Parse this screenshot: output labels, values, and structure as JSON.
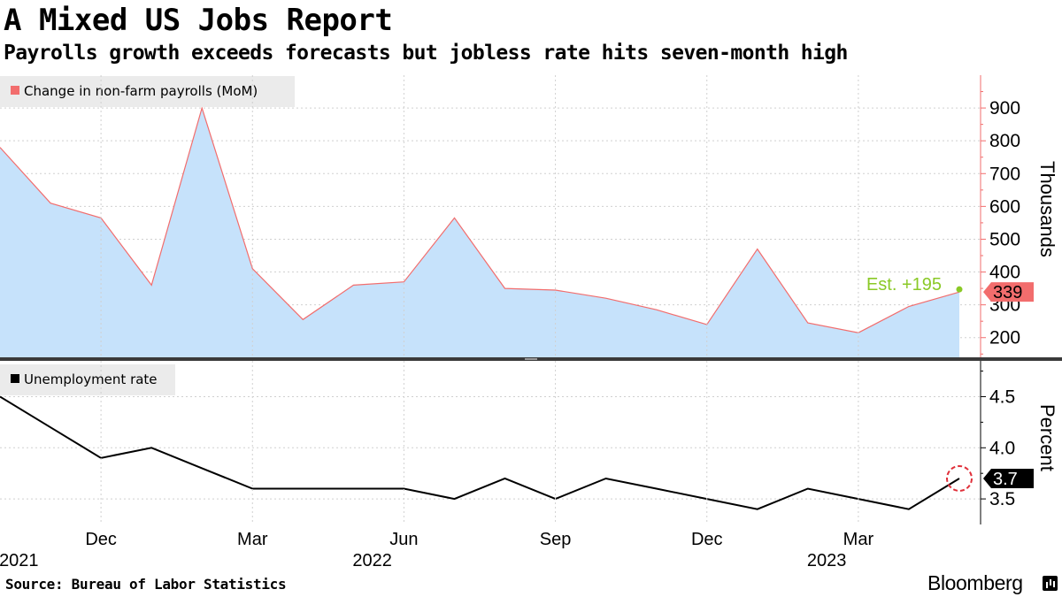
{
  "title": "A Mixed US Jobs Report",
  "subtitle": "Payrolls growth exceeds forecasts but jobless rate hits seven-month high",
  "source": "Source: Bureau of Labor Statistics",
  "brand": "Bloomberg",
  "chart_data": [
    {
      "type": "area",
      "legend": "Change in non-farm payrolls (MoM)",
      "ylabel": "Thousands",
      "ylim": [
        140,
        1000
      ],
      "yticks": [
        200,
        300,
        400,
        500,
        600,
        700,
        800,
        900
      ],
      "x": [
        "2021-10",
        "2021-11",
        "2021-12",
        "2022-01",
        "2022-02",
        "2022-03",
        "2022-04",
        "2022-05",
        "2022-06",
        "2022-07",
        "2022-08",
        "2022-09",
        "2022-10",
        "2022-11",
        "2022-12",
        "2023-01",
        "2023-02",
        "2023-03",
        "2023-04",
        "2023-05"
      ],
      "values": [
        780,
        610,
        565,
        360,
        900,
        410,
        255,
        360,
        370,
        565,
        350,
        345,
        320,
        285,
        240,
        470,
        245,
        215,
        295,
        339
      ],
      "colors": {
        "line": "#f26d6d",
        "fill": "#c6e2fb",
        "estimate": "#8ac926",
        "badge": "#f26d6d"
      },
      "estimate": {
        "label": "Est. +195",
        "value": 195
      },
      "last_value_label": "339"
    },
    {
      "type": "line",
      "legend": "Unemployment rate",
      "ylabel": "Percent",
      "ylim": [
        3.25,
        4.85
      ],
      "yticks": [
        "3.5",
        "4.0",
        "4.5"
      ],
      "x": [
        "2021-10",
        "2021-11",
        "2021-12",
        "2022-01",
        "2022-02",
        "2022-03",
        "2022-04",
        "2022-05",
        "2022-06",
        "2022-07",
        "2022-08",
        "2022-09",
        "2022-10",
        "2022-11",
        "2022-12",
        "2023-01",
        "2023-02",
        "2023-03",
        "2023-04",
        "2023-05"
      ],
      "values": [
        4.5,
        4.2,
        3.9,
        4.0,
        3.8,
        3.6,
        3.6,
        3.6,
        3.6,
        3.5,
        3.7,
        3.5,
        3.7,
        3.6,
        3.5,
        3.4,
        3.6,
        3.5,
        3.4,
        3.7
      ],
      "colors": {
        "line": "#000000",
        "badge": "#000000",
        "highlight": "#e0303a"
      },
      "last_value_label": "3.7"
    }
  ],
  "x_axis": {
    "month_ticks": [
      {
        "x": "2021-12",
        "label": "Dec"
      },
      {
        "x": "2022-03",
        "label": "Mar"
      },
      {
        "x": "2022-06",
        "label": "Jun"
      },
      {
        "x": "2022-09",
        "label": "Sep"
      },
      {
        "x": "2022-12",
        "label": "Dec"
      },
      {
        "x": "2023-03",
        "label": "Mar"
      }
    ],
    "year_labels": [
      {
        "x": "2021-11",
        "label": "2021"
      },
      {
        "x": "2022-06",
        "label": "2022"
      },
      {
        "x": "2023-03",
        "label": "2023"
      }
    ]
  }
}
